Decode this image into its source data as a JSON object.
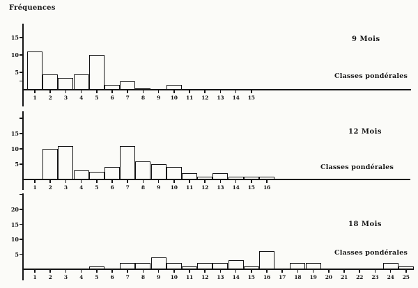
{
  "figure": {
    "ylabel": "Fréquences",
    "ink_color": "#141414",
    "paper_color": "#fbfbf8"
  },
  "chart_data": [
    {
      "type": "bar",
      "title": "9 Mois",
      "xlabel": "Classes pondérales",
      "ylabel": "Fréquences",
      "categories": [
        "1",
        "2",
        "3",
        "4",
        "5",
        "6",
        "7",
        "8",
        "9",
        "10",
        "11",
        "12",
        "13",
        "14",
        "15"
      ],
      "values": [
        11,
        4.5,
        3.5,
        4.5,
        10,
        1.5,
        2.5,
        0.5,
        0,
        1.5,
        0,
        0,
        0,
        0,
        0
      ],
      "yticks": [
        {
          "value": 15,
          "label": "15"
        },
        {
          "value": 10,
          "label": "10"
        },
        {
          "value": 5,
          "label": "5"
        },
        {
          "value": 2.5,
          "label": ""
        }
      ],
      "ylim": [
        0,
        18
      ],
      "grid": false,
      "bar_fill": "none",
      "legend": null
    },
    {
      "type": "bar",
      "title": "12 Mois",
      "xlabel": "Classes pondérales",
      "ylabel": "Fréquences",
      "categories": [
        "1",
        "2",
        "3",
        "4",
        "5",
        "6",
        "7",
        "8",
        "9",
        "10",
        "11",
        "12",
        "13",
        "14",
        "15",
        "16"
      ],
      "values": [
        0,
        10,
        11,
        3,
        2.5,
        4,
        11,
        6,
        5,
        4,
        2,
        1,
        2,
        1,
        1,
        1
      ],
      "yticks": [
        {
          "value": 20,
          "label": ""
        },
        {
          "value": 15,
          "label": "15"
        },
        {
          "value": 10,
          "label": "10"
        },
        {
          "value": 5,
          "label": "5"
        }
      ],
      "ylim": [
        0,
        22
      ],
      "grid": false,
      "bar_fill": "none",
      "legend": null
    },
    {
      "type": "bar",
      "title": "18 Mois",
      "xlabel": "Classes pondérales",
      "ylabel": "Fréquences",
      "categories": [
        "1",
        "2",
        "3",
        "4",
        "5",
        "6",
        "7",
        "8",
        "9",
        "10",
        "11",
        "12",
        "13",
        "14",
        "15",
        "16",
        "17",
        "18",
        "19",
        "20",
        "21",
        "22",
        "23",
        "24",
        "25"
      ],
      "values": [
        0,
        0,
        0,
        0,
        1,
        0,
        2,
        2,
        4,
        2,
        1,
        2,
        2,
        3,
        1,
        6,
        0,
        2,
        2,
        0,
        0,
        0,
        0,
        2,
        1
      ],
      "yticks": [
        {
          "value": 25,
          "label": ""
        },
        {
          "value": 20,
          "label": "20"
        },
        {
          "value": 15,
          "label": "15"
        },
        {
          "value": 10,
          "label": "10"
        },
        {
          "value": 5,
          "label": "5"
        }
      ],
      "ylim": [
        0,
        25
      ],
      "grid": false,
      "bar_fill": "none",
      "legend": null
    }
  ]
}
